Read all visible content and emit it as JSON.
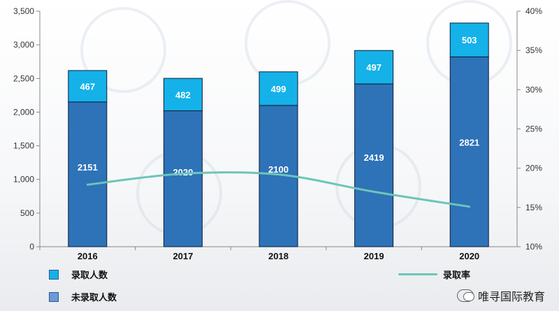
{
  "chart_data": {
    "type": "bar",
    "categories": [
      "2016",
      "2017",
      "2018",
      "2019",
      "2020"
    ],
    "series": [
      {
        "name": "未录取人数",
        "values": [
          2151,
          2020,
          2100,
          2419,
          2821
        ],
        "color": "#2e72b8"
      },
      {
        "name": "录取人数",
        "values": [
          467,
          482,
          499,
          497,
          503
        ],
        "color": "#14b2e8"
      },
      {
        "name": "录取率",
        "values": [
          17.9,
          19.3,
          19.2,
          17.0,
          15.1
        ],
        "color": "#6cc5b8"
      }
    ],
    "ylim": [
      0,
      3500
    ],
    "yticks": [
      "0",
      "500",
      "1,000",
      "1,500",
      "2,000",
      "2,500",
      "3,000",
      "3,500"
    ],
    "y2lim": [
      10,
      40
    ],
    "y2ticks": [
      "10%",
      "15%",
      "20%",
      "25%",
      "30%",
      "35%",
      "40%"
    ],
    "grid": false
  },
  "legend": {
    "admitted_label": "录取人数",
    "not_admitted_label": "未录取人数",
    "rate_label": "录取率"
  },
  "footer": {
    "wechat_label": "唯寻国际教育"
  },
  "colors": {
    "dark_bar": "#2e72b8",
    "light_bar": "#14b2e8",
    "rate_line": "#6cc5b8",
    "border": "#0c1f3a"
  }
}
